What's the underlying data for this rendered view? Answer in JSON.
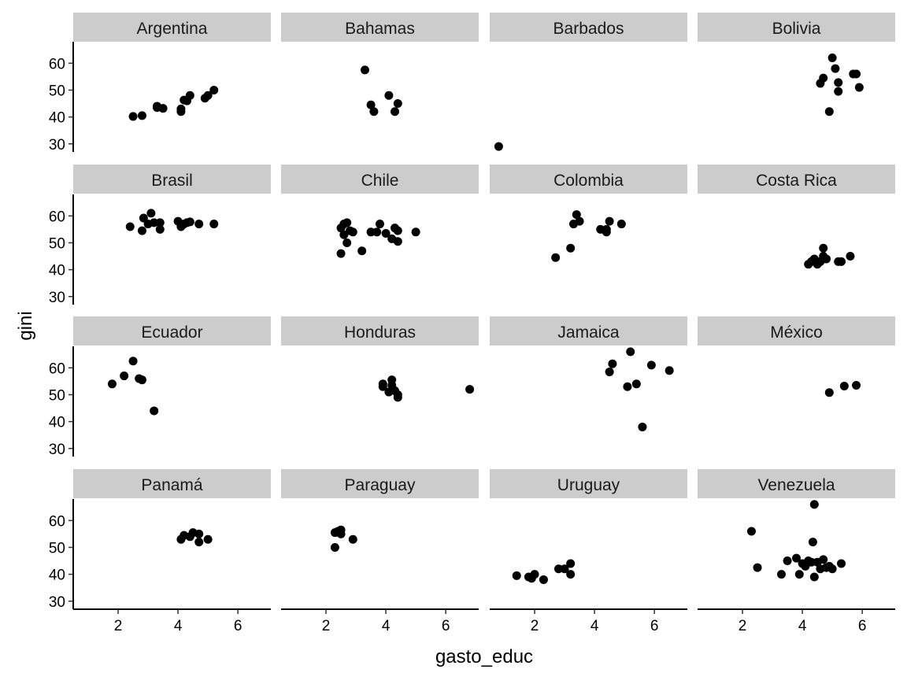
{
  "chart_data": {
    "type": "scatter",
    "layout": "facet_wrap",
    "ncol": 4,
    "xlabel": "gasto_educ",
    "ylabel": "gini",
    "xlim": [
      0.5,
      7.1
    ],
    "ylim": [
      27,
      68
    ],
    "x_ticks": [
      2,
      4,
      6
    ],
    "y_ticks": [
      30,
      40,
      50,
      60
    ],
    "grid": false,
    "point_color": "#000000",
    "strip_color": "#cccccc",
    "panels": [
      {
        "name": "Argentina",
        "points": [
          [
            2.5,
            40.2
          ],
          [
            2.8,
            40.5
          ],
          [
            3.3,
            43.5
          ],
          [
            3.3,
            44.0
          ],
          [
            3.5,
            43.2
          ],
          [
            4.1,
            42.0
          ],
          [
            4.1,
            43.0
          ],
          [
            4.2,
            46.3
          ],
          [
            4.3,
            46.0
          ],
          [
            4.4,
            48.0
          ],
          [
            4.9,
            47.0
          ],
          [
            5.0,
            48.0
          ],
          [
            5.2,
            50.0
          ]
        ]
      },
      {
        "name": "Bahamas",
        "points": [
          [
            3.3,
            57.5
          ],
          [
            3.5,
            44.5
          ],
          [
            3.6,
            42.0
          ],
          [
            4.1,
            48.0
          ],
          [
            4.3,
            42.0
          ],
          [
            4.4,
            45.0
          ]
        ]
      },
      {
        "name": "Barbados",
        "points": [
          [
            0.8,
            29.0
          ]
        ]
      },
      {
        "name": "Bolivia",
        "points": [
          [
            4.6,
            52.5
          ],
          [
            4.7,
            54.5
          ],
          [
            4.9,
            42.0
          ],
          [
            5.0,
            62.0
          ],
          [
            5.1,
            58.0
          ],
          [
            5.2,
            52.8
          ],
          [
            5.2,
            49.5
          ],
          [
            5.7,
            56.0
          ],
          [
            5.8,
            56.0
          ],
          [
            5.9,
            51.0
          ]
        ]
      },
      {
        "name": "Brasil",
        "points": [
          [
            2.4,
            56.0
          ],
          [
            2.8,
            54.5
          ],
          [
            2.85,
            59.2
          ],
          [
            3.0,
            57.0
          ],
          [
            3.1,
            61.0
          ],
          [
            3.2,
            57.5
          ],
          [
            3.4,
            55.0
          ],
          [
            3.4,
            57.5
          ],
          [
            4.0,
            58.0
          ],
          [
            4.1,
            56.0
          ],
          [
            4.2,
            57.0
          ],
          [
            4.3,
            57.5
          ],
          [
            4.4,
            57.8
          ],
          [
            4.7,
            57.0
          ],
          [
            5.2,
            57.0
          ]
        ]
      },
      {
        "name": "Chile",
        "points": [
          [
            2.5,
            55.5
          ],
          [
            2.5,
            46.0
          ],
          [
            2.6,
            53.0
          ],
          [
            2.6,
            57.0
          ],
          [
            2.7,
            57.5
          ],
          [
            2.7,
            50.0
          ],
          [
            2.8,
            54.5
          ],
          [
            2.9,
            54.0
          ],
          [
            3.2,
            47.0
          ],
          [
            3.5,
            54.0
          ],
          [
            3.7,
            54.0
          ],
          [
            3.8,
            57.0
          ],
          [
            4.0,
            53.5
          ],
          [
            4.2,
            51.5
          ],
          [
            4.3,
            55.5
          ],
          [
            4.4,
            50.5
          ],
          [
            4.4,
            54.5
          ],
          [
            5.0,
            54.0
          ]
        ]
      },
      {
        "name": "Colombia",
        "points": [
          [
            2.7,
            44.5
          ],
          [
            3.2,
            48.0
          ],
          [
            3.3,
            57.0
          ],
          [
            3.4,
            60.5
          ],
          [
            3.5,
            58.0
          ],
          [
            4.2,
            55.0
          ],
          [
            4.4,
            55.0
          ],
          [
            4.4,
            54.0
          ],
          [
            4.5,
            58.0
          ],
          [
            4.9,
            57.0
          ]
        ]
      },
      {
        "name": "Costa Rica",
        "points": [
          [
            4.2,
            42.0
          ],
          [
            4.3,
            43.0
          ],
          [
            4.4,
            44.0
          ],
          [
            4.5,
            42.0
          ],
          [
            4.6,
            43.0
          ],
          [
            4.7,
            48.0
          ],
          [
            4.7,
            45.0
          ],
          [
            4.8,
            44.0
          ],
          [
            5.2,
            43.0
          ],
          [
            5.3,
            43.0
          ],
          [
            5.6,
            45.0
          ]
        ]
      },
      {
        "name": "Ecuador",
        "points": [
          [
            1.8,
            54.0
          ],
          [
            2.2,
            57.0
          ],
          [
            2.5,
            62.5
          ],
          [
            2.7,
            56.0
          ],
          [
            2.8,
            55.5
          ],
          [
            3.2,
            44.0
          ]
        ]
      },
      {
        "name": "Honduras",
        "points": [
          [
            3.9,
            54.0
          ],
          [
            3.9,
            53.0
          ],
          [
            4.1,
            51.0
          ],
          [
            4.2,
            53.5
          ],
          [
            4.2,
            55.5
          ],
          [
            4.3,
            51.5
          ],
          [
            4.4,
            50.0
          ],
          [
            4.4,
            49.0
          ],
          [
            6.8,
            52.0
          ]
        ]
      },
      {
        "name": "Jamaica",
        "points": [
          [
            4.5,
            58.5
          ],
          [
            4.6,
            61.5
          ],
          [
            5.1,
            53.0
          ],
          [
            5.2,
            66.0
          ],
          [
            5.4,
            54.0
          ],
          [
            5.6,
            38.0
          ],
          [
            5.9,
            61.0
          ],
          [
            6.5,
            59.0
          ]
        ]
      },
      {
        "name": "México",
        "points": [
          [
            4.9,
            50.8
          ],
          [
            5.4,
            53.2
          ],
          [
            5.8,
            53.5
          ]
        ]
      },
      {
        "name": "Panamá",
        "points": [
          [
            4.1,
            53.0
          ],
          [
            4.2,
            54.5
          ],
          [
            4.4,
            54.0
          ],
          [
            4.5,
            55.5
          ],
          [
            4.7,
            52.0
          ],
          [
            4.7,
            55.0
          ],
          [
            5.0,
            53.0
          ]
        ]
      },
      {
        "name": "Paraguay",
        "points": [
          [
            2.3,
            55.5
          ],
          [
            2.3,
            50.0
          ],
          [
            2.4,
            56.0
          ],
          [
            2.5,
            56.5
          ],
          [
            2.5,
            55.0
          ],
          [
            2.9,
            53.0
          ]
        ]
      },
      {
        "name": "Uruguay",
        "points": [
          [
            1.4,
            39.5
          ],
          [
            1.8,
            39.0
          ],
          [
            1.9,
            38.5
          ],
          [
            2.0,
            40.0
          ],
          [
            2.3,
            38.0
          ],
          [
            2.8,
            42.0
          ],
          [
            3.0,
            42.0
          ],
          [
            3.2,
            44.0
          ],
          [
            3.2,
            40.0
          ]
        ]
      },
      {
        "name": "Venezuela",
        "points": [
          [
            2.3,
            56.0
          ],
          [
            2.5,
            42.5
          ],
          [
            3.3,
            40.0
          ],
          [
            3.5,
            45.0
          ],
          [
            3.8,
            46.0
          ],
          [
            3.9,
            40.0
          ],
          [
            4.0,
            44.0
          ],
          [
            4.1,
            43.0
          ],
          [
            4.2,
            45.0
          ],
          [
            4.3,
            44.5
          ],
          [
            4.35,
            52.0
          ],
          [
            4.4,
            66.0
          ],
          [
            4.4,
            39.0
          ],
          [
            4.5,
            44.5
          ],
          [
            4.6,
            42.0
          ],
          [
            4.7,
            45.5
          ],
          [
            4.8,
            42.5
          ],
          [
            4.9,
            43.0
          ],
          [
            5.0,
            42.0
          ],
          [
            5.3,
            44.0
          ]
        ]
      }
    ]
  }
}
